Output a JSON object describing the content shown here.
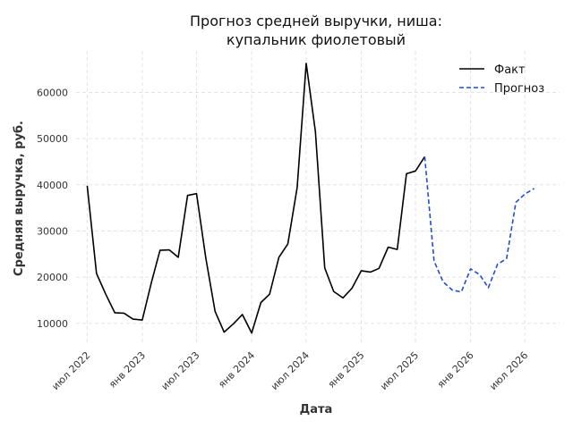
{
  "chart_data": {
    "type": "line",
    "title_lines": [
      "Прогноз средней выручки, ниша:",
      "купальник фиолетовый"
    ],
    "xlabel": "Дата",
    "ylabel": "Средняя выручка, руб.",
    "x_ticks": [
      {
        "date": "2022-07-01",
        "label": "июл 2022"
      },
      {
        "date": "2023-01-01",
        "label": "янв 2023"
      },
      {
        "date": "2023-07-01",
        "label": "июл 2023"
      },
      {
        "date": "2024-01-01",
        "label": "янв 2024"
      },
      {
        "date": "2024-07-01",
        "label": "июл 2024"
      },
      {
        "date": "2025-01-01",
        "label": "янв 2025"
      },
      {
        "date": "2025-07-01",
        "label": "июл 2025"
      },
      {
        "date": "2026-01-01",
        "label": "янв 2026"
      },
      {
        "date": "2026-07-01",
        "label": "июл 2026"
      }
    ],
    "y_ticks": [
      10000,
      20000,
      30000,
      40000,
      50000,
      60000
    ],
    "xlim": [
      "2022-05-25",
      "2026-10-25"
    ],
    "ylim": [
      5500,
      69000
    ],
    "grid": true,
    "legend_position": "top-right",
    "series": [
      {
        "name": "Факт",
        "color": "#000000",
        "dash": "solid",
        "x": [
          "2022-07-01",
          "2022-08-01",
          "2022-09-01",
          "2022-10-01",
          "2022-11-01",
          "2022-12-01",
          "2023-01-01",
          "2023-02-01",
          "2023-03-01",
          "2023-04-01",
          "2023-05-01",
          "2023-06-01",
          "2023-07-01",
          "2023-08-01",
          "2023-09-01",
          "2023-10-01",
          "2023-11-01",
          "2023-12-01",
          "2024-01-01",
          "2024-02-01",
          "2024-03-01",
          "2024-04-01",
          "2024-05-01",
          "2024-06-01",
          "2024-07-01",
          "2024-08-01",
          "2024-09-01",
          "2024-10-01",
          "2024-11-01",
          "2024-12-01",
          "2025-01-01",
          "2025-02-01",
          "2025-03-01",
          "2025-04-01",
          "2025-05-01",
          "2025-06-01",
          "2025-07-01",
          "2025-08-01"
        ],
        "y": [
          39800,
          20800,
          16300,
          12300,
          12200,
          10900,
          10700,
          19000,
          25800,
          25900,
          24300,
          37700,
          38100,
          24100,
          12600,
          8100,
          9900,
          11900,
          7900,
          14500,
          16300,
          24300,
          27200,
          39400,
          66300,
          51500,
          22000,
          16900,
          15500,
          17600,
          21400,
          21100,
          21900,
          26500,
          26000,
          42400,
          43000,
          46100
        ]
      },
      {
        "name": "Прогноз",
        "color": "#1f4fd1",
        "dash": "dashed",
        "x": [
          "2025-08-01",
          "2025-09-01",
          "2025-10-01",
          "2025-11-01",
          "2025-12-01",
          "2026-01-01",
          "2026-02-01",
          "2026-03-01",
          "2026-04-01",
          "2026-05-01",
          "2026-06-01",
          "2026-07-01",
          "2026-08-01"
        ],
        "y": [
          46100,
          23500,
          19000,
          17200,
          16800,
          21800,
          20500,
          17700,
          22800,
          24000,
          36200,
          38000,
          39200
        ]
      }
    ]
  }
}
